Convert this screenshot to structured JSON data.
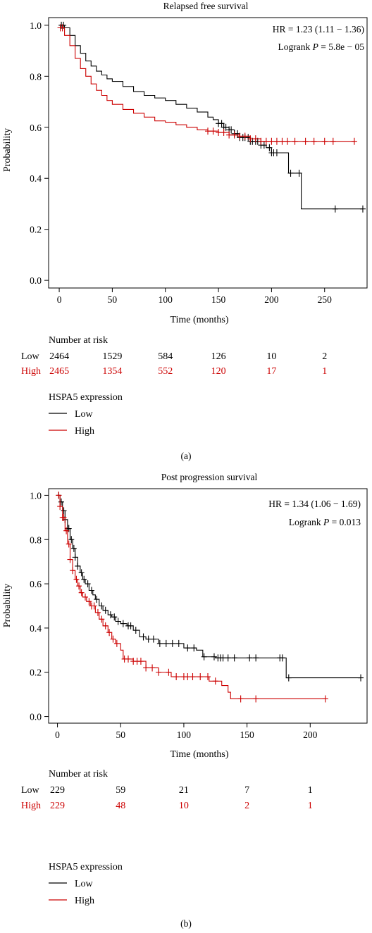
{
  "chart_data": [
    {
      "type": "line",
      "panel_label": "(a)",
      "title": "Relapsed free survival",
      "xlabel": "Time (months)",
      "ylabel": "Probability",
      "xlim": [
        -10,
        290
      ],
      "ylim": [
        -0.03,
        1.03
      ],
      "x_ticks": [
        0,
        50,
        100,
        150,
        200,
        250
      ],
      "y_ticks": [
        "0.0",
        "0.2",
        "0.4",
        "0.6",
        "0.8",
        "1.0"
      ],
      "hr_text": "HR = 1.23 (1.11 − 1.36)",
      "logrank_prefix": "Logrank ",
      "logrank_p": "P",
      "logrank_value": " = 5.8e − 05",
      "risk_title": "Number at risk",
      "risk_times": [
        0,
        50,
        100,
        150,
        200,
        250
      ],
      "risk_table": [
        {
          "group": "Low",
          "color": "#000000",
          "values": [
            "2464",
            "1529",
            "584",
            "126",
            "10",
            "2"
          ]
        },
        {
          "group": "High",
          "color": "#cc0000",
          "values": [
            "2465",
            "1354",
            "552",
            "120",
            "17",
            "1"
          ]
        }
      ],
      "legend_title": "HSPA5 expression",
      "legend": [
        {
          "name": "Low",
          "color": "#000000"
        },
        {
          "name": "High",
          "color": "#cc0000"
        }
      ],
      "series": [
        {
          "name": "Low",
          "color": "#000000",
          "x": [
            0,
            5,
            10,
            15,
            20,
            25,
            30,
            35,
            40,
            45,
            50,
            60,
            70,
            80,
            90,
            100,
            110,
            120,
            130,
            140,
            145,
            150,
            155,
            160,
            165,
            170,
            180,
            190,
            195,
            200,
            205,
            210,
            216,
            220,
            228,
            240,
            260,
            286
          ],
          "y": [
            1.0,
            0.99,
            0.96,
            0.92,
            0.89,
            0.86,
            0.84,
            0.82,
            0.805,
            0.79,
            0.78,
            0.76,
            0.74,
            0.725,
            0.715,
            0.705,
            0.69,
            0.675,
            0.66,
            0.64,
            0.63,
            0.615,
            0.6,
            0.59,
            0.575,
            0.56,
            0.545,
            0.53,
            0.52,
            0.5,
            0.5,
            0.5,
            0.42,
            0.42,
            0.28,
            0.28,
            0.28,
            0.28
          ],
          "censor_x": [
            2,
            4,
            150,
            153,
            155,
            157,
            160,
            162,
            165,
            168,
            170,
            173,
            175,
            178,
            180,
            182,
            185,
            187,
            190,
            193,
            198,
            200,
            202,
            205,
            218,
            226,
            260,
            286
          ]
        },
        {
          "name": "High",
          "color": "#cc0000",
          "x": [
            0,
            5,
            10,
            15,
            20,
            25,
            30,
            35,
            40,
            45,
            50,
            60,
            70,
            80,
            90,
            100,
            110,
            120,
            130,
            140,
            150,
            160,
            170,
            180,
            190,
            200,
            210,
            220,
            278
          ],
          "y": [
            0.99,
            0.96,
            0.92,
            0.87,
            0.83,
            0.8,
            0.77,
            0.745,
            0.725,
            0.705,
            0.69,
            0.67,
            0.655,
            0.64,
            0.625,
            0.62,
            0.61,
            0.6,
            0.59,
            0.585,
            0.58,
            0.57,
            0.565,
            0.555,
            0.545,
            0.545,
            0.545,
            0.545,
            0.545
          ],
          "censor_x": [
            1,
            3,
            140,
            145,
            150,
            155,
            160,
            165,
            170,
            175,
            180,
            185,
            190,
            195,
            200,
            205,
            210,
            215,
            222,
            232,
            240,
            250,
            258,
            278
          ]
        }
      ]
    },
    {
      "type": "line",
      "panel_label": "(b)",
      "title": "Post progression survival",
      "xlabel": "Time (months)",
      "ylabel": "Probability",
      "xlim": [
        -7,
        245
      ],
      "ylim": [
        -0.03,
        1.03
      ],
      "x_ticks": [
        0,
        50,
        100,
        150,
        200
      ],
      "y_ticks": [
        "0.0",
        "0.2",
        "0.4",
        "0.6",
        "0.8",
        "1.0"
      ],
      "hr_text": "HR = 1.34 (1.06 − 1.69)",
      "logrank_prefix": "Logrank ",
      "logrank_p": "P",
      "logrank_value": " = 0.013",
      "risk_title": "Number at risk",
      "risk_times": [
        0,
        50,
        100,
        150,
        200
      ],
      "risk_table": [
        {
          "group": "Low",
          "color": "#000000",
          "values": [
            "229",
            "59",
            "21",
            "7",
            "1"
          ]
        },
        {
          "group": "High",
          "color": "#cc0000",
          "values": [
            "229",
            "48",
            "10",
            "2",
            "1"
          ]
        }
      ],
      "legend_title": "HSPA5 expression",
      "legend": [
        {
          "name": "Low",
          "color": "#000000"
        },
        {
          "name": "High",
          "color": "#cc0000"
        }
      ],
      "series": [
        {
          "name": "Low",
          "color": "#000000",
          "x": [
            0,
            2,
            4,
            6,
            8,
            10,
            12,
            14,
            16,
            18,
            20,
            22,
            25,
            28,
            30,
            33,
            36,
            40,
            43,
            46,
            50,
            55,
            60,
            65,
            70,
            80,
            90,
            100,
            110,
            115,
            125,
            140,
            160,
            181,
            240
          ],
          "y": [
            1.0,
            0.97,
            0.93,
            0.89,
            0.85,
            0.8,
            0.76,
            0.72,
            0.68,
            0.65,
            0.62,
            0.6,
            0.57,
            0.55,
            0.53,
            0.5,
            0.48,
            0.46,
            0.45,
            0.43,
            0.42,
            0.41,
            0.39,
            0.36,
            0.35,
            0.33,
            0.33,
            0.31,
            0.3,
            0.27,
            0.265,
            0.265,
            0.265,
            0.175,
            0.175
          ],
          "censor_x": [
            1,
            3,
            5,
            6,
            8,
            9,
            11,
            13,
            14,
            16,
            19,
            21,
            24,
            27,
            31,
            35,
            38,
            42,
            45,
            48,
            52,
            56,
            58,
            62,
            68,
            72,
            76,
            81,
            86,
            91,
            96,
            103,
            108,
            116,
            124,
            127,
            129,
            131,
            135,
            140,
            152,
            157,
            176,
            178,
            183,
            240
          ]
        },
        {
          "name": "High",
          "color": "#cc0000",
          "x": [
            0,
            2,
            4,
            6,
            8,
            10,
            12,
            14,
            16,
            18,
            20,
            23,
            26,
            30,
            33,
            36,
            40,
            43,
            46,
            50,
            52,
            60,
            70,
            80,
            90,
            100,
            120,
            130,
            135,
            137,
            212
          ],
          "y": [
            1.0,
            0.95,
            0.9,
            0.84,
            0.78,
            0.71,
            0.66,
            0.62,
            0.59,
            0.56,
            0.54,
            0.52,
            0.5,
            0.47,
            0.44,
            0.41,
            0.38,
            0.35,
            0.33,
            0.3,
            0.26,
            0.25,
            0.22,
            0.2,
            0.18,
            0.18,
            0.16,
            0.14,
            0.11,
            0.08,
            0.08
          ],
          "censor_x": [
            1,
            2,
            4,
            5,
            7,
            9,
            10,
            12,
            15,
            17,
            19,
            22,
            25,
            27,
            29,
            32,
            35,
            38,
            41,
            44,
            47,
            53,
            56,
            60,
            63,
            66,
            70,
            75,
            80,
            88,
            94,
            100,
            103,
            107,
            113,
            119,
            125,
            145,
            157,
            212
          ]
        }
      ]
    }
  ]
}
